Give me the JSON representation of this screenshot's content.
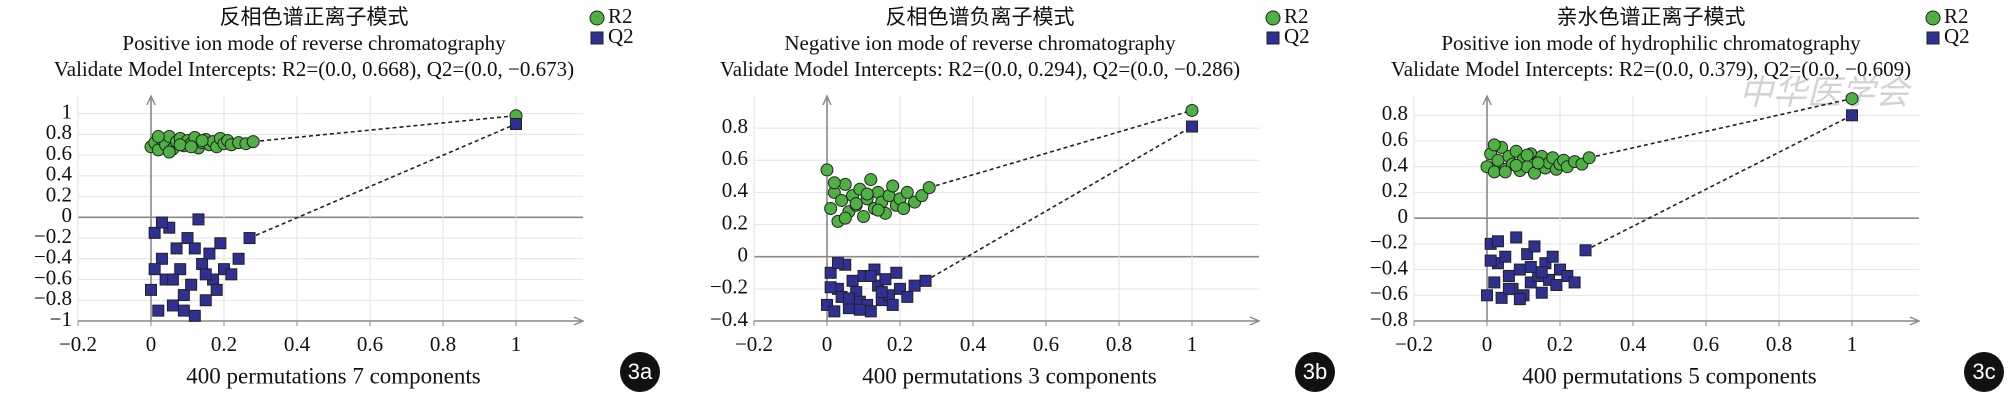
{
  "chart_data": [
    {
      "type": "scatter",
      "title": "反相色谱正离子模式",
      "subtitle": "Positive ion mode of reverse chromatography",
      "note": "Validate Model Intercepts: R2=(0.0, 0.668), Q2=(0.0, −0.673)",
      "x_label": "400 permutations 7 components",
      "panel_label": "3a",
      "xlim": [
        -0.2,
        1.2
      ],
      "xticks": [
        {
          "value": -0.2,
          "label": "−0.2"
        },
        0,
        0.2,
        0.4,
        0.6,
        0.8,
        1
      ],
      "ylim": [
        -1,
        1.17
      ],
      "yticks": [
        {
          "value": -1,
          "label": "−1"
        },
        {
          "value": -0.8,
          "label": "−0.8"
        },
        {
          "value": -0.6,
          "label": "−0.6"
        },
        {
          "value": -0.4,
          "label": "−0.4"
        },
        {
          "value": -0.2,
          "label": "−0.2"
        },
        0,
        0.2,
        0.4,
        0.6,
        0.8,
        1
      ],
      "grid": true,
      "series": [
        {
          "name": "R2",
          "color": "#4fb043",
          "marker": "circle",
          "x": [
            0,
            0.01,
            0.02,
            0.03,
            0.04,
            0.05,
            0.06,
            0.07,
            0.08,
            0.09,
            0.1,
            0.11,
            0.12,
            0.13,
            0.14,
            0.15,
            0.16,
            0.17,
            0.18,
            0.19,
            0.2,
            0.21,
            0.22,
            0.24,
            0.26,
            0.28,
            0.02,
            0.05,
            0.08,
            0.11,
            0.14,
            1
          ],
          "values": [
            0.68,
            0.72,
            0.65,
            0.75,
            0.7,
            0.78,
            0.66,
            0.73,
            0.76,
            0.69,
            0.74,
            0.71,
            0.77,
            0.67,
            0.72,
            0.75,
            0.7,
            0.73,
            0.68,
            0.76,
            0.71,
            0.74,
            0.7,
            0.72,
            0.71,
            0.73,
            0.78,
            0.63,
            0.7,
            0.68,
            0.74,
            0.98
          ]
        },
        {
          "name": "Q2",
          "color": "#2e3192",
          "marker": "square",
          "x": [
            0,
            0.01,
            0.02,
            0.03,
            0.04,
            0.05,
            0.06,
            0.07,
            0.08,
            0.09,
            0.1,
            0.11,
            0.12,
            0.13,
            0.14,
            0.15,
            0.16,
            0.17,
            0.18,
            0.19,
            0.2,
            0.22,
            0.24,
            0.27,
            0.03,
            0.06,
            0.09,
            0.12,
            0.15,
            0.01,
            1
          ],
          "values": [
            -0.7,
            -0.15,
            -0.9,
            -0.4,
            -0.6,
            -0.1,
            -0.85,
            -0.3,
            -0.5,
            -0.75,
            -0.2,
            -0.65,
            -0.95,
            -0.02,
            -0.45,
            -0.8,
            -0.35,
            -0.6,
            -0.7,
            -0.25,
            -0.5,
            -0.55,
            -0.4,
            -0.2,
            -0.05,
            -0.6,
            -0.9,
            -0.3,
            -0.55,
            -0.5,
            0.9
          ]
        }
      ]
    },
    {
      "type": "scatter",
      "title": "反相色谱负离子模式",
      "subtitle": "Negative ion mode of reverse chromatography",
      "note": "Validate Model Intercepts: R2=(0.0, 0.294), Q2=(0.0, −0.286)",
      "x_label": "400 permutations 3 components",
      "panel_label": "3b",
      "xlim": [
        -0.2,
        1.2
      ],
      "xticks": [
        {
          "value": -0.2,
          "label": "−0.2"
        },
        0,
        0.2,
        0.4,
        0.6,
        0.8,
        1
      ],
      "ylim": [
        -0.4,
        1.0
      ],
      "yticks": [
        {
          "value": -0.4,
          "label": "−0.4"
        },
        {
          "value": -0.2,
          "label": "−0.2"
        },
        0,
        0.2,
        0.4,
        0.6,
        0.8
      ],
      "grid": true,
      "series": [
        {
          "name": "R2",
          "color": "#4fb043",
          "marker": "circle",
          "x": [
            0,
            0.01,
            0.02,
            0.03,
            0.04,
            0.05,
            0.06,
            0.07,
            0.08,
            0.09,
            0.1,
            0.11,
            0.12,
            0.13,
            0.14,
            0.15,
            0.16,
            0.17,
            0.18,
            0.19,
            0.2,
            0.21,
            0.22,
            0.24,
            0.26,
            0.28,
            0.02,
            0.05,
            0.08,
            0.11,
            0.14,
            1
          ],
          "values": [
            0.54,
            0.3,
            0.4,
            0.22,
            0.35,
            0.45,
            0.28,
            0.38,
            0.32,
            0.42,
            0.25,
            0.36,
            0.48,
            0.3,
            0.4,
            0.34,
            0.27,
            0.38,
            0.44,
            0.32,
            0.36,
            0.3,
            0.4,
            0.34,
            0.38,
            0.43,
            0.46,
            0.24,
            0.33,
            0.39,
            0.29,
            0.91
          ]
        },
        {
          "name": "Q2",
          "color": "#2e3192",
          "marker": "square",
          "x": [
            0,
            0.01,
            0.02,
            0.03,
            0.04,
            0.05,
            0.06,
            0.07,
            0.08,
            0.09,
            0.1,
            0.11,
            0.12,
            0.13,
            0.14,
            0.15,
            0.16,
            0.17,
            0.18,
            0.19,
            0.2,
            0.22,
            0.24,
            0.27,
            0.03,
            0.06,
            0.09,
            0.12,
            0.15,
            0.01,
            1
          ],
          "values": [
            -0.3,
            -0.1,
            -0.34,
            -0.2,
            -0.25,
            -0.05,
            -0.32,
            -0.15,
            -0.22,
            -0.28,
            -0.12,
            -0.3,
            -0.34,
            -0.08,
            -0.18,
            -0.27,
            -0.14,
            -0.24,
            -0.3,
            -0.1,
            -0.2,
            -0.25,
            -0.18,
            -0.15,
            -0.04,
            -0.26,
            -0.33,
            -0.12,
            -0.22,
            -0.19,
            0.81
          ]
        }
      ]
    },
    {
      "type": "scatter",
      "title": "亲水色谱正离子模式",
      "subtitle": "Positive ion mode of hydrophilic chromatography",
      "note": "Validate Model Intercepts: R2=(0.0, 0.379), Q2=(0.0, −0.609)",
      "x_label": "400 permutations 5 components",
      "panel_label": "3c",
      "watermark": "中华医学会",
      "xlim": [
        -0.2,
        1.2
      ],
      "xticks": [
        {
          "value": -0.2,
          "label": "−0.2"
        },
        0,
        0.2,
        0.4,
        0.6,
        0.8,
        1
      ],
      "ylim": [
        -0.8,
        0.95
      ],
      "yticks": [
        {
          "value": -0.8,
          "label": "−0.8"
        },
        {
          "value": -0.6,
          "label": "−0.6"
        },
        {
          "value": -0.4,
          "label": "−0.4"
        },
        {
          "value": -0.2,
          "label": "−0.2"
        },
        0,
        0.2,
        0.4,
        0.6,
        0.8
      ],
      "grid": true,
      "series": [
        {
          "name": "R2",
          "color": "#4fb043",
          "marker": "circle",
          "x": [
            0,
            0.01,
            0.02,
            0.03,
            0.04,
            0.05,
            0.06,
            0.07,
            0.08,
            0.09,
            0.1,
            0.11,
            0.12,
            0.13,
            0.14,
            0.15,
            0.16,
            0.17,
            0.18,
            0.19,
            0.2,
            0.21,
            0.22,
            0.24,
            0.26,
            0.28,
            0.02,
            0.05,
            0.08,
            0.11,
            0.14,
            1
          ],
          "values": [
            0.4,
            0.5,
            0.36,
            0.45,
            0.55,
            0.38,
            0.48,
            0.42,
            0.52,
            0.37,
            0.46,
            0.4,
            0.5,
            0.35,
            0.44,
            0.48,
            0.39,
            0.43,
            0.47,
            0.38,
            0.42,
            0.45,
            0.4,
            0.44,
            0.42,
            0.47,
            0.57,
            0.36,
            0.41,
            0.49,
            0.43,
            0.93
          ]
        },
        {
          "name": "Q2",
          "color": "#2e3192",
          "marker": "square",
          "x": [
            0,
            0.01,
            0.02,
            0.03,
            0.04,
            0.05,
            0.06,
            0.07,
            0.08,
            0.09,
            0.1,
            0.11,
            0.12,
            0.13,
            0.14,
            0.15,
            0.16,
            0.17,
            0.18,
            0.19,
            0.2,
            0.22,
            0.24,
            0.27,
            0.03,
            0.06,
            0.09,
            0.12,
            0.15,
            0.01,
            1
          ],
          "values": [
            -0.6,
            -0.2,
            -0.5,
            -0.35,
            -0.62,
            -0.3,
            -0.45,
            -0.55,
            -0.15,
            -0.4,
            -0.6,
            -0.28,
            -0.5,
            -0.22,
            -0.45,
            -0.58,
            -0.35,
            -0.48,
            -0.3,
            -0.52,
            -0.4,
            -0.45,
            -0.5,
            -0.25,
            -0.18,
            -0.55,
            -0.63,
            -0.38,
            -0.42,
            -0.33,
            0.8
          ]
        }
      ]
    }
  ]
}
